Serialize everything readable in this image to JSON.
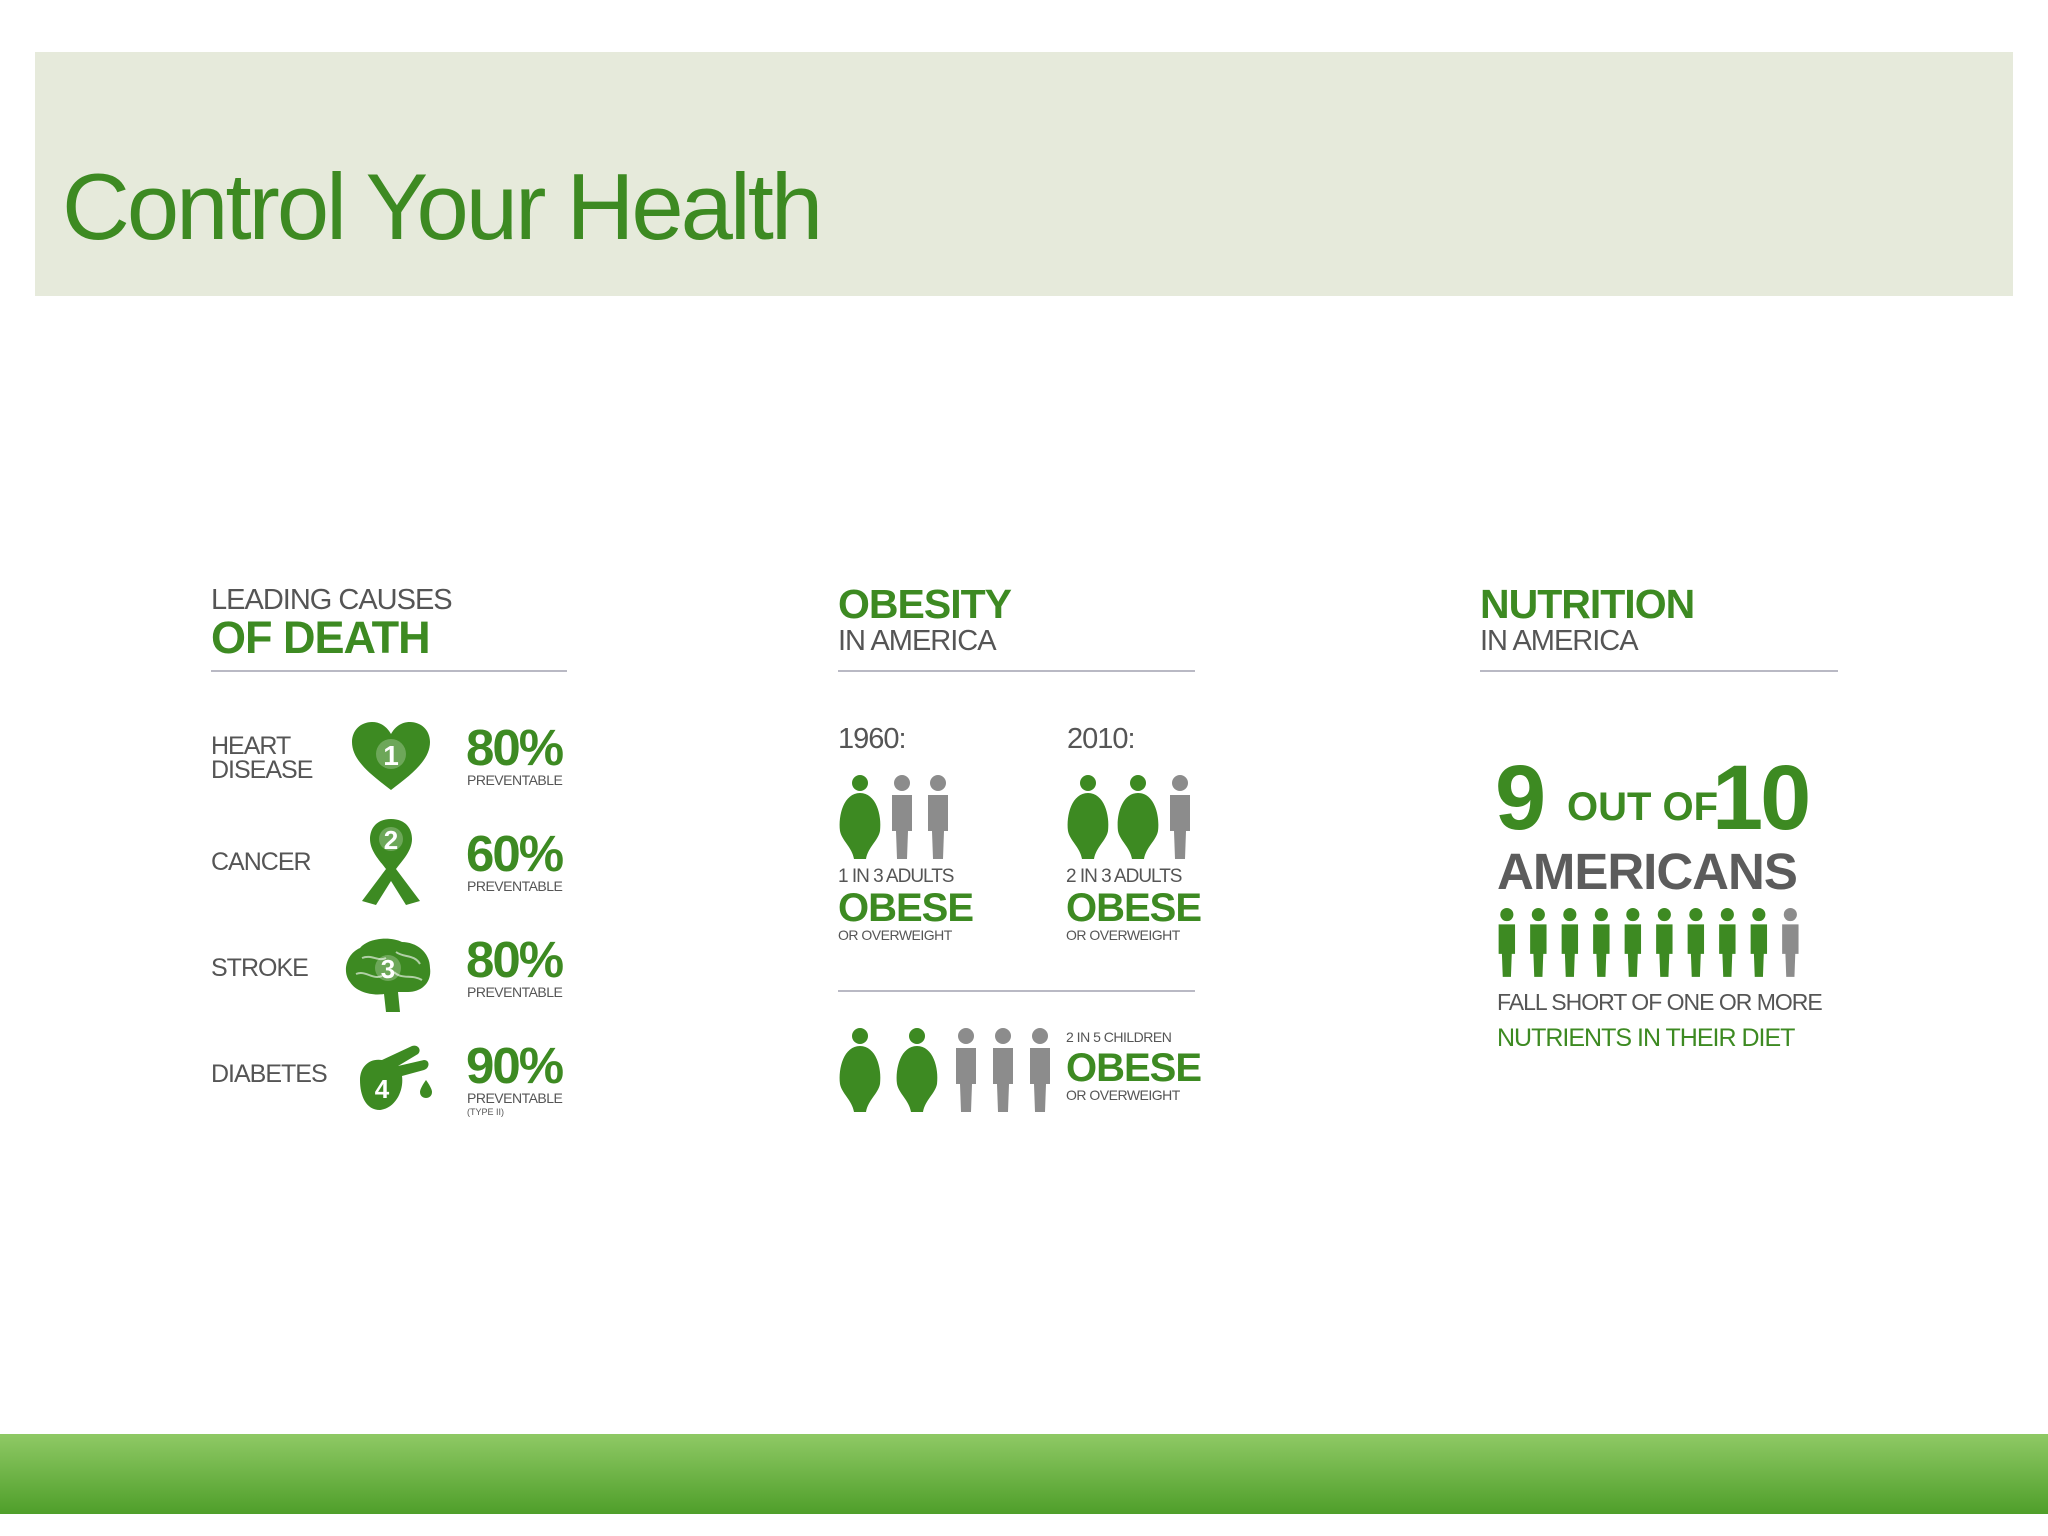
{
  "slide": {
    "title": "Control Your Health"
  },
  "colors": {
    "accent": "#3d8a22",
    "gray": "#8c8c8c",
    "title_band": "#e6eadb",
    "bottom_bar": "#5ea834"
  },
  "death": {
    "header_small": "LEADING CAUSES",
    "header_big": "OF DEATH",
    "rows": [
      {
        "label_line1": "HEART",
        "label_line2": "DISEASE",
        "rank": "1",
        "icon": "heart-icon",
        "percent": "80%",
        "note": "PREVENTABLE",
        "subnote": ""
      },
      {
        "label_line1": "CANCER",
        "label_line2": "",
        "rank": "2",
        "icon": "ribbon-icon",
        "percent": "60%",
        "note": "PREVENTABLE",
        "subnote": ""
      },
      {
        "label_line1": "STROKE",
        "label_line2": "",
        "rank": "3",
        "icon": "brain-icon",
        "percent": "80%",
        "note": "PREVENTABLE",
        "subnote": ""
      },
      {
        "label_line1": "DIABETES",
        "label_line2": "",
        "rank": "4",
        "icon": "finger-prick-icon",
        "percent": "90%",
        "note": "PREVENTABLE",
        "subnote": "(TYPE II)"
      }
    ]
  },
  "obesity": {
    "header_big": "OBESITY",
    "header_small": "IN AMERICA",
    "adults_1960": {
      "year": "1960:",
      "ratio": "1 IN 3 ADULTS",
      "obese": 1,
      "total": 3,
      "big": "OBESE",
      "small": "OR OVERWEIGHT"
    },
    "adults_2010": {
      "year": "2010:",
      "ratio": "2 IN 3 ADULTS",
      "obese": 2,
      "total": 3,
      "big": "OBESE",
      "small": "OR OVERWEIGHT"
    },
    "children": {
      "ratio": "2 IN 5 CHILDREN",
      "obese": 2,
      "total": 5,
      "big": "OBESE",
      "small": "OR OVERWEIGHT"
    }
  },
  "nutrition": {
    "header_big": "NUTRITION",
    "header_small": "IN AMERICA",
    "count": "9",
    "out_of": "OUT OF",
    "total": "10",
    "americans": "AMERICANS",
    "people_highlighted": 9,
    "people_total": 10,
    "line1": "FALL SHORT OF ONE OR MORE",
    "line2": "NUTRIENTS IN THEIR DIET"
  }
}
